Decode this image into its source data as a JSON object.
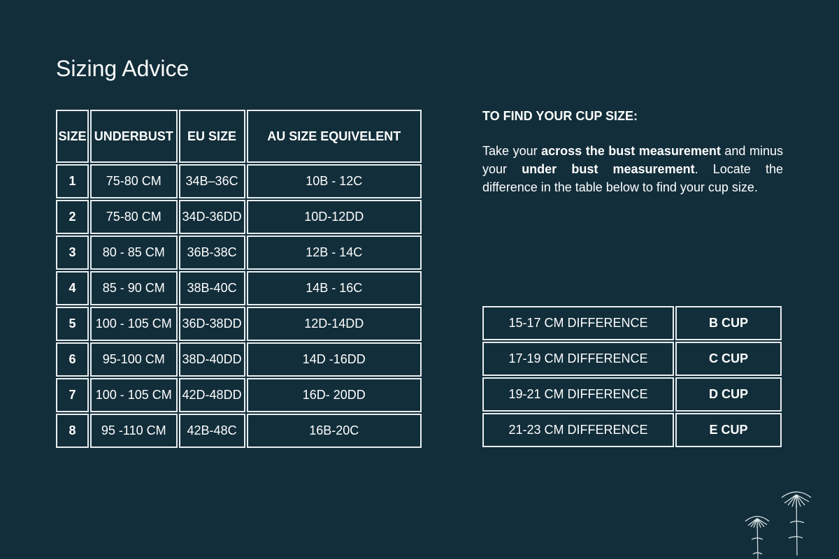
{
  "title": "Sizing Advice",
  "size_table": {
    "headers": [
      "SIZE",
      "UNDERBUST",
      "EU SIZE",
      "AU SIZE EQUIVELENT"
    ],
    "rows": [
      [
        "1",
        "75-80 CM",
        "34B–36C",
        "10B - 12C"
      ],
      [
        "2",
        "75-80 CM",
        "34D-36DD",
        "10D-12DD"
      ],
      [
        "3",
        "80 - 85 CM",
        "36B-38C",
        "12B - 14C"
      ],
      [
        "4",
        "85 - 90 CM",
        "38B-40C",
        "14B - 16C"
      ],
      [
        "5",
        "100 - 105 CM",
        "36D-38DD",
        "12D-14DD"
      ],
      [
        "6",
        "95-100 CM",
        "38D-40DD",
        "14D -16DD"
      ],
      [
        "7",
        "100 - 105 CM",
        "42D-48DD",
        "16D- 20DD"
      ],
      [
        "8",
        "95 -110 CM",
        "42B-48C",
        "16B-20C"
      ]
    ]
  },
  "advice": {
    "heading": "TO FIND YOUR CUP SIZE:",
    "text_1": "Take your ",
    "bold_1": "across the bust measurement",
    "text_2": " and minus your ",
    "bold_2": "under bust measurement",
    "text_3": ". Locate the difference in the table below to find your cup size."
  },
  "cup_table": {
    "rows": [
      [
        "15-17 CM DIFFERENCE",
        "B CUP"
      ],
      [
        "17-19 CM DIFFERENCE",
        "C CUP"
      ],
      [
        "19-21 CM DIFFERENCE",
        "D CUP"
      ],
      [
        "21-23 CM DIFFERENCE",
        "E CUP"
      ]
    ]
  },
  "colors": {
    "background": "#122e3a",
    "text": "#ffffff"
  },
  "decoration": "flower-illustration"
}
